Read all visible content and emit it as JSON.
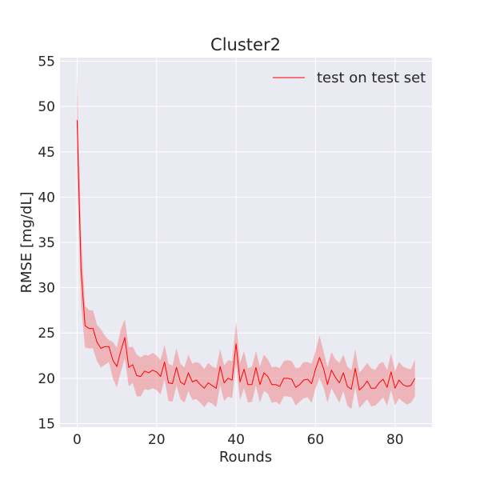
{
  "chart_data": {
    "type": "line",
    "title": "Cluster2",
    "xlabel": "Rounds",
    "ylabel": "RMSE [mg/dL]",
    "xlim": [
      -4.3,
      89.3
    ],
    "ylim": [
      14.6,
      55.4
    ],
    "xticks": [
      0,
      20,
      40,
      60,
      80
    ],
    "yticks": [
      15,
      20,
      25,
      30,
      35,
      40,
      45,
      50,
      55
    ],
    "grid": true,
    "legend": {
      "position": "top-right"
    },
    "colors": {
      "line": "#ff0000",
      "band": "#f08080",
      "plot_bg": "#eaeaf2",
      "grid": "#ffffff"
    },
    "series": [
      {
        "name": "test on test set",
        "x": [
          0,
          1,
          2,
          3,
          4,
          5,
          6,
          7,
          8,
          9,
          10,
          11,
          12,
          13,
          14,
          15,
          16,
          17,
          18,
          19,
          20,
          21,
          22,
          23,
          24,
          25,
          26,
          27,
          28,
          29,
          30,
          31,
          32,
          33,
          34,
          35,
          36,
          37,
          38,
          39,
          40,
          41,
          42,
          43,
          44,
          45,
          46,
          47,
          48,
          49,
          50,
          51,
          52,
          53,
          54,
          55,
          56,
          57,
          58,
          59,
          60,
          61,
          62,
          63,
          64,
          65,
          66,
          67,
          68,
          69,
          70,
          71,
          72,
          73,
          74,
          75,
          76,
          77,
          78,
          79,
          80,
          81,
          82,
          83,
          84,
          85
        ],
        "mean": [
          48.5,
          32.0,
          25.8,
          25.5,
          25.5,
          24.0,
          23.3,
          23.5,
          23.5,
          22.0,
          21.3,
          23.0,
          24.5,
          21.2,
          21.5,
          20.3,
          20.2,
          20.8,
          20.6,
          20.9,
          20.7,
          20.2,
          21.8,
          19.5,
          19.4,
          21.2,
          19.6,
          19.3,
          20.6,
          19.6,
          19.8,
          19.3,
          18.9,
          19.5,
          19.2,
          18.9,
          21.3,
          19.5,
          20.0,
          19.8,
          23.8,
          19.6,
          21.0,
          19.3,
          19.3,
          21.2,
          19.3,
          20.6,
          20.2,
          19.3,
          19.3,
          19.1,
          20.0,
          20.0,
          19.9,
          19.0,
          19.3,
          19.8,
          19.9,
          19.4,
          21.0,
          22.3,
          21.1,
          19.3,
          20.9,
          20.1,
          19.5,
          20.6,
          19.1,
          18.8,
          21.1,
          18.7,
          19.1,
          19.7,
          18.9,
          18.9,
          19.5,
          19.9,
          19.0,
          20.7,
          18.9,
          19.8,
          19.3,
          19.1,
          19.2,
          20.0
        ],
        "upper": [
          53.4,
          36.0,
          28.0,
          27.5,
          27.5,
          25.9,
          25.4,
          24.7,
          24.2,
          24.0,
          23.4,
          25.4,
          26.5,
          23.4,
          23.5,
          22.6,
          22.3,
          22.6,
          22.5,
          22.8,
          22.5,
          22.0,
          23.7,
          21.6,
          21.4,
          23.3,
          21.6,
          21.2,
          22.6,
          21.6,
          21.8,
          21.6,
          21.0,
          21.7,
          21.3,
          21.1,
          23.2,
          21.4,
          22.0,
          21.9,
          26.2,
          21.7,
          23.0,
          21.1,
          21.3,
          23.0,
          21.3,
          22.6,
          22.1,
          21.2,
          21.3,
          21.1,
          21.9,
          22.0,
          21.9,
          21.1,
          21.2,
          21.8,
          21.8,
          21.6,
          23.0,
          24.7,
          23.0,
          21.2,
          22.9,
          22.1,
          21.7,
          22.6,
          21.3,
          20.9,
          23.2,
          20.6,
          21.1,
          21.7,
          21.1,
          20.9,
          21.6,
          21.8,
          20.9,
          22.7,
          20.8,
          21.8,
          21.3,
          21.1,
          21.0,
          22.1
        ],
        "lower": [
          42.5,
          28.0,
          23.4,
          23.3,
          23.3,
          21.9,
          21.2,
          21.5,
          21.8,
          20.0,
          19.0,
          20.7,
          22.2,
          19.1,
          19.5,
          18.0,
          18.0,
          18.8,
          18.7,
          18.9,
          18.7,
          18.2,
          19.9,
          17.5,
          17.4,
          19.2,
          17.7,
          17.3,
          18.6,
          17.6,
          17.7,
          17.3,
          16.8,
          17.4,
          17.2,
          16.8,
          19.2,
          17.5,
          18.0,
          17.8,
          21.5,
          17.6,
          18.9,
          17.3,
          17.4,
          19.2,
          17.3,
          18.6,
          18.3,
          17.3,
          17.4,
          17.1,
          18.0,
          18.0,
          17.9,
          17.0,
          17.4,
          17.8,
          17.9,
          17.3,
          18.9,
          20.0,
          19.0,
          17.3,
          18.9,
          18.1,
          17.3,
          18.6,
          17.0,
          16.6,
          19.0,
          16.7,
          17.2,
          17.7,
          16.9,
          17.0,
          17.4,
          17.9,
          17.0,
          18.7,
          17.0,
          17.8,
          17.4,
          17.1,
          17.3,
          18.0
        ]
      }
    ]
  }
}
